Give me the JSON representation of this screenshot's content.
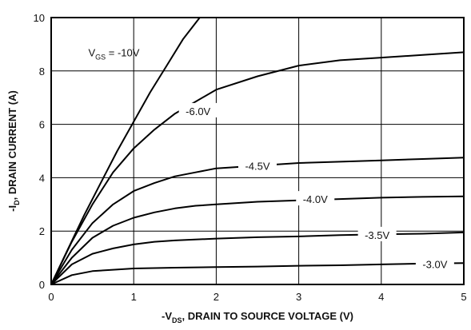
{
  "chart_data": {
    "type": "line",
    "title": "",
    "xlabel": "-VDS, DRAIN TO SOURCE VOLTAGE (V)",
    "ylabel": "-ID, DRAIN CURRENT (A)",
    "xlabel_parts": {
      "prefix": "-V",
      "sub": "DS",
      "suffix": ", DRAIN TO SOURCE VOLTAGE (V)"
    },
    "ylabel_parts": {
      "prefix": "-I",
      "sub": "D",
      "suffix": ", DRAIN CURRENT (A)"
    },
    "xlim": [
      0,
      5
    ],
    "ylim": [
      0,
      10
    ],
    "xticks": [
      "0",
      "1",
      "2",
      "3",
      "4",
      "5"
    ],
    "yticks": [
      "0",
      "2",
      "4",
      "6",
      "8",
      "10"
    ],
    "grid": true,
    "series": [
      {
        "name": "VGS = -10V",
        "label_parts": {
          "prefix": "V",
          "sub": "GS",
          "suffix": " = -10V"
        },
        "x": [
          0,
          0.2,
          0.4,
          0.6,
          0.8,
          1.0,
          1.2,
          1.4,
          1.6,
          1.8
        ],
        "y": [
          0,
          1.3,
          2.6,
          3.8,
          5.0,
          6.1,
          7.2,
          8.2,
          9.2,
          10.0
        ]
      },
      {
        "name": "-6.0V",
        "label": "-6.0V",
        "x": [
          0,
          0.25,
          0.5,
          0.75,
          1.0,
          1.25,
          1.5,
          2.0,
          2.5,
          3.0,
          3.5,
          4.0,
          4.5,
          5.0
        ],
        "y": [
          0,
          1.6,
          3.0,
          4.2,
          5.1,
          5.8,
          6.4,
          7.3,
          7.8,
          8.2,
          8.4,
          8.5,
          8.6,
          8.7
        ]
      },
      {
        "name": "-4.5V",
        "label": "-4.5V",
        "x": [
          0,
          0.25,
          0.5,
          0.75,
          1.0,
          1.25,
          1.5,
          1.75,
          2.0,
          2.5,
          3.0,
          3.5,
          4.0,
          4.5,
          5.0
        ],
        "y": [
          0,
          1.3,
          2.3,
          3.0,
          3.5,
          3.8,
          4.05,
          4.2,
          4.35,
          4.45,
          4.55,
          4.6,
          4.65,
          4.7,
          4.75
        ]
      },
      {
        "name": "-4.0V",
        "label": "-4.0V",
        "x": [
          0,
          0.25,
          0.5,
          0.75,
          1.0,
          1.25,
          1.5,
          1.75,
          2.0,
          2.5,
          3.0,
          3.5,
          4.0,
          4.5,
          5.0
        ],
        "y": [
          0,
          1.0,
          1.75,
          2.2,
          2.5,
          2.7,
          2.85,
          2.95,
          3.0,
          3.1,
          3.15,
          3.2,
          3.25,
          3.28,
          3.3
        ]
      },
      {
        "name": "-3.5V",
        "label": "-3.5V",
        "x": [
          0,
          0.25,
          0.5,
          0.75,
          1.0,
          1.25,
          1.5,
          2.0,
          2.5,
          3.0,
          3.5,
          4.0,
          4.5,
          5.0
        ],
        "y": [
          0,
          0.75,
          1.15,
          1.35,
          1.5,
          1.6,
          1.65,
          1.72,
          1.77,
          1.8,
          1.85,
          1.88,
          1.9,
          1.95
        ]
      },
      {
        "name": "-3.0V",
        "label": "-3.0V",
        "x": [
          0,
          0.25,
          0.5,
          0.75,
          1.0,
          1.5,
          2.0,
          2.5,
          3.0,
          3.5,
          4.0,
          4.5,
          5.0
        ],
        "y": [
          0,
          0.35,
          0.5,
          0.55,
          0.6,
          0.63,
          0.65,
          0.67,
          0.7,
          0.72,
          0.75,
          0.78,
          0.8
        ]
      }
    ]
  }
}
